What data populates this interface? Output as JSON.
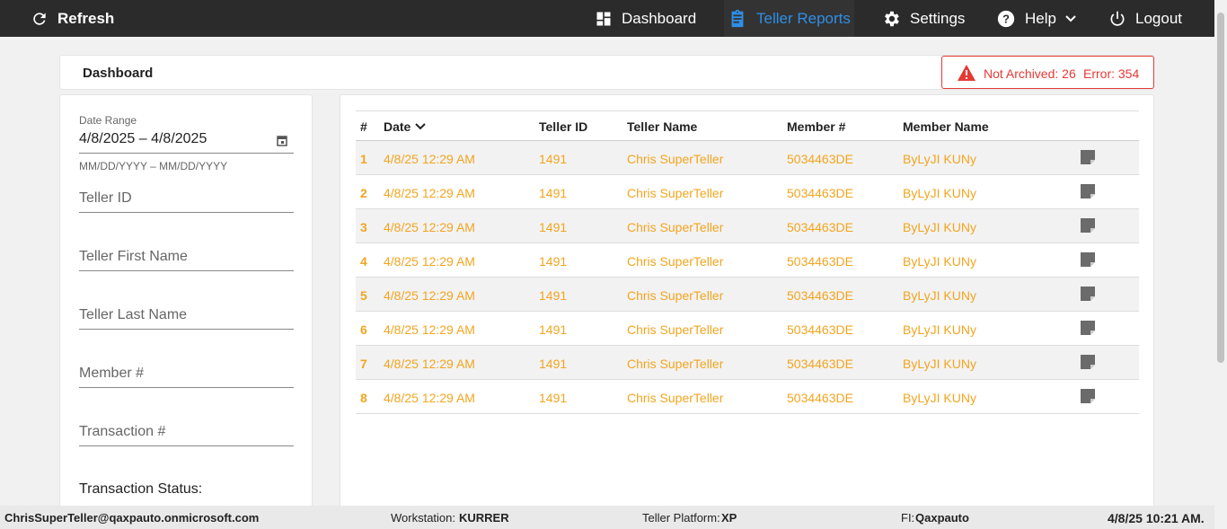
{
  "nav": {
    "refresh": "Refresh",
    "items": [
      "Dashboard",
      "Teller Reports",
      "Settings",
      "Help",
      "Logout"
    ]
  },
  "header": {
    "title": "Dashboard",
    "alert": {
      "not_archived": "Not Archived: 26",
      "error": "Error: 354"
    }
  },
  "filters": {
    "date_range_label": "Date Range",
    "date_range_value": "4/8/2025 – 4/8/2025",
    "date_hint": "MM/DD/YYYY – MM/DD/YYYY",
    "fields": [
      "Teller ID",
      "Teller First Name",
      "Teller Last Name",
      "Member #",
      "Transaction #"
    ],
    "status_label": "Transaction Status:"
  },
  "table": {
    "columns": [
      "#",
      "Date",
      "Teller ID",
      "Teller Name",
      "Member #",
      "Member Name"
    ],
    "rows": [
      [
        "1",
        "4/8/25 12:29 AM",
        "1491",
        "Chris SuperTeller",
        "5034463DE",
        "ByLyJI KUNy"
      ],
      [
        "2",
        "4/8/25 12:29 AM",
        "1491",
        "Chris SuperTeller",
        "5034463DE",
        "ByLyJI KUNy"
      ],
      [
        "3",
        "4/8/25 12:29 AM",
        "1491",
        "Chris SuperTeller",
        "5034463DE",
        "ByLyJI KUNy"
      ],
      [
        "4",
        "4/8/25 12:29 AM",
        "1491",
        "Chris SuperTeller",
        "5034463DE",
        "ByLyJI KUNy"
      ],
      [
        "5",
        "4/8/25 12:29 AM",
        "1491",
        "Chris SuperTeller",
        "5034463DE",
        "ByLyJI KUNy"
      ],
      [
        "6",
        "4/8/25 12:29 AM",
        "1491",
        "Chris SuperTeller",
        "5034463DE",
        "ByLyJI KUNy"
      ],
      [
        "7",
        "4/8/25 12:29 AM",
        "1491",
        "Chris SuperTeller",
        "5034463DE",
        "ByLyJI KUNy"
      ],
      [
        "8",
        "4/8/25 12:29 AM",
        "1491",
        "Chris SuperTeller",
        "5034463DE",
        "ByLyJI KUNy"
      ]
    ]
  },
  "footer": {
    "user": "ChrisSuperTeller@qaxpauto.onmicrosoft.com",
    "workstation_label": "Workstation:",
    "workstation": "KURRER",
    "platform_label": "Teller Platform:",
    "platform": "XP",
    "fi_label": "FI:",
    "fi": "Qaxpauto",
    "datetime": "4/8/25 10:21 AM."
  }
}
